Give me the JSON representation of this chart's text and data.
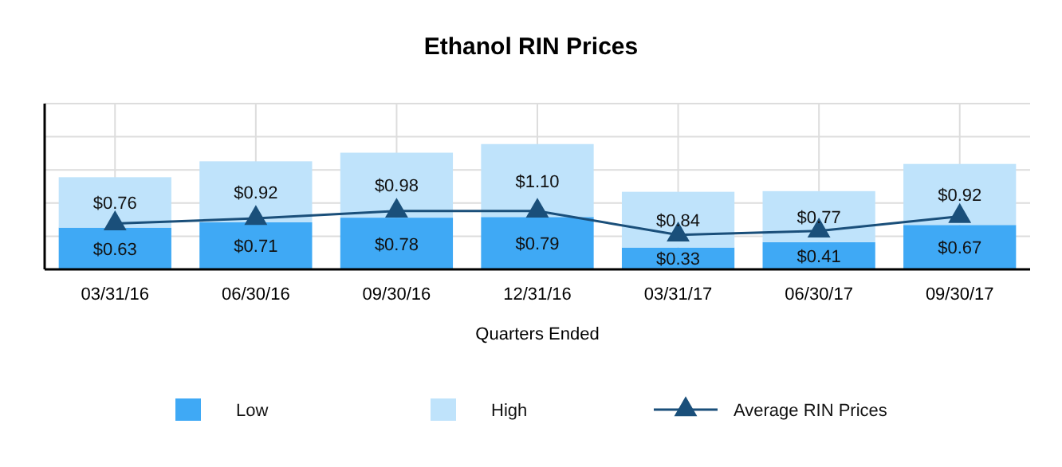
{
  "chart_data": {
    "type": "bar",
    "title": "Ethanol RIN Prices",
    "xlabel": "Quarters Ended",
    "categories": [
      "03/31/16",
      "06/30/16",
      "09/30/16",
      "12/31/16",
      "03/31/17",
      "06/30/17",
      "09/30/17"
    ],
    "stacked": true,
    "series": [
      {
        "name": "Low",
        "color": "#3fa9f5",
        "values": [
          0.63,
          0.71,
          0.78,
          0.79,
          0.33,
          0.41,
          0.67
        ],
        "value_labels": [
          "$0.63",
          "$0.71",
          "$0.78",
          "$0.79",
          "$0.33",
          "$0.41",
          "$0.67"
        ]
      },
      {
        "name": "High",
        "color": "#bfe3fb",
        "values": [
          0.76,
          0.92,
          0.98,
          1.1,
          0.84,
          0.77,
          0.92
        ],
        "value_labels": [
          "$0.76",
          "$0.92",
          "$0.98",
          "$1.10",
          "$0.84",
          "$0.77",
          "$0.92"
        ]
      },
      {
        "name": "Average RIN Prices",
        "type": "line",
        "color": "#1a4f7a",
        "marker": "triangle",
        "values": [
          0.69,
          0.77,
          0.88,
          0.88,
          0.52,
          0.58,
          0.8
        ]
      }
    ],
    "ylim": [
      0,
      2.5
    ],
    "yticks": [
      {
        "value": 0,
        "label": null
      },
      {
        "value": 0.5,
        "label": null
      },
      {
        "value": 1,
        "label": null
      },
      {
        "value": 1.5,
        "label": null
      },
      {
        "value": 2,
        "label": null
      },
      {
        "value": 2.5,
        "label": null
      }
    ],
    "tick_labels": "x",
    "grid": true,
    "legend": "bottom"
  }
}
